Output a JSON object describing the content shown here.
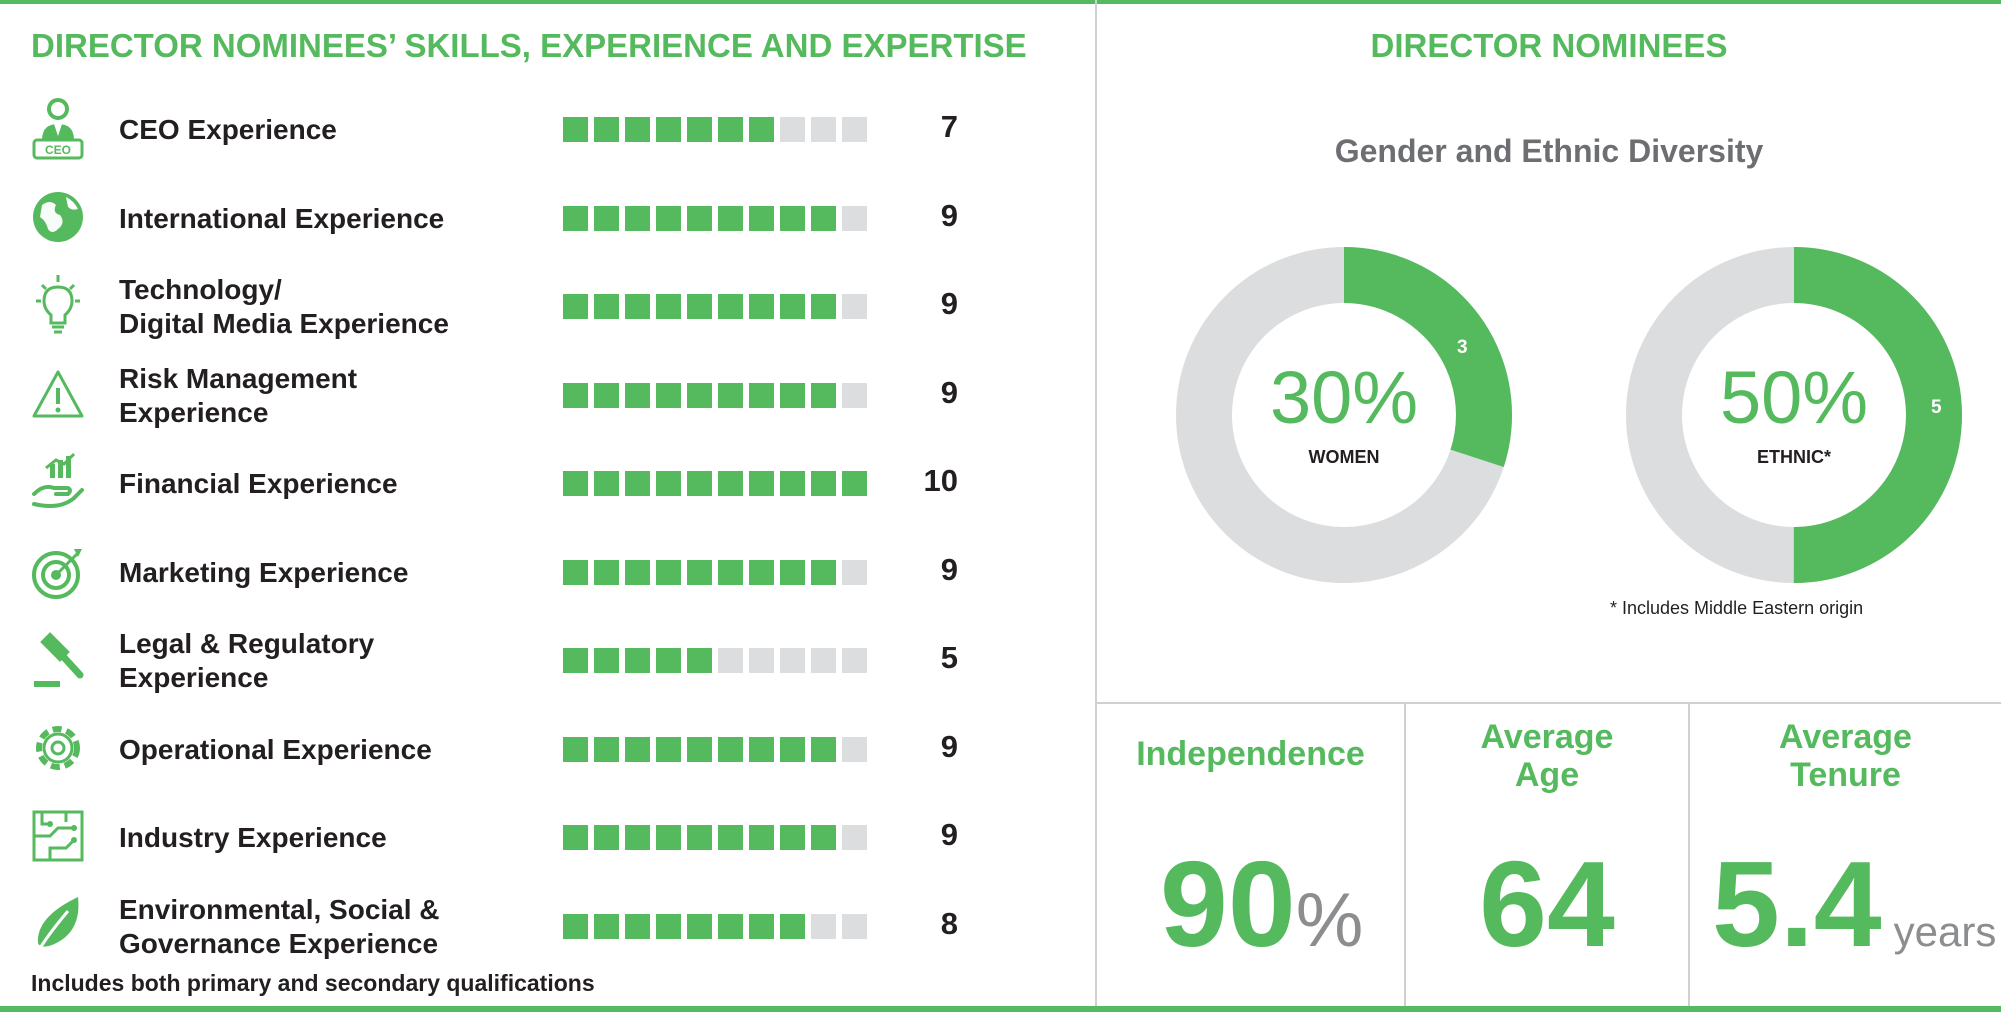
{
  "left_panel": {
    "title": "DIRECTOR NOMINEES’ SKILLS, EXPERIENCE AND EXPERTISE",
    "footnote": "Includes both primary and secondary qualifications"
  },
  "right_panel": {
    "title": "DIRECTOR NOMINEES",
    "subtitle": "Gender and Ethnic Diversity",
    "donut_women": {
      "percent": "30%",
      "caption": "WOMEN",
      "segment_label": "3"
    },
    "donut_ethnic": {
      "percent": "50%",
      "caption": "ETHNIC*",
      "segment_label": "5"
    },
    "ethnic_note": "* Includes Middle Eastern origin",
    "stats": {
      "independence": {
        "title": "Independence",
        "value": "90",
        "unit": "%"
      },
      "age": {
        "title_line1": "Average",
        "title_line2": "Age",
        "value": "64"
      },
      "tenure": {
        "title_line1": "Average",
        "title_line2": "Tenure",
        "value": "5.4",
        "unit": "years"
      }
    }
  },
  "colors": {
    "accent": "#55b95e",
    "empty": "#dcddde",
    "text": "#231f20",
    "muted": "#6d6e71"
  },
  "chart_data": [
    {
      "type": "bar",
      "max": 10,
      "categories": [
        "CEO Experience",
        "International Experience",
        "Technology/ Digital Media Experience",
        "Risk Management Experience",
        "Financial Experience",
        "Marketing Experience",
        "Legal & Regulatory Experience",
        "Operational Experience",
        "Industry Experience",
        "Environmental, Social & Governance Experience"
      ],
      "label_lines": [
        [
          "CEO Experience"
        ],
        [
          "International Experience"
        ],
        [
          "Technology/",
          "Digital Media Experience"
        ],
        [
          "Risk Management",
          "Experience"
        ],
        [
          "Financial Experience"
        ],
        [
          "Marketing Experience"
        ],
        [
          "Legal & Regulatory",
          "Experience"
        ],
        [
          "Operational Experience"
        ],
        [
          "Industry Experience"
        ],
        [
          "Environmental, Social &",
          "Governance Experience"
        ]
      ],
      "icons": [
        "ceo-badge-icon",
        "globe-icon",
        "lightbulb-icon",
        "warning-triangle-icon",
        "hand-chart-icon",
        "target-icon",
        "gavel-icon",
        "gear-icon",
        "circuit-board-icon",
        "leaf-icon"
      ],
      "values": [
        7,
        9,
        9,
        9,
        10,
        9,
        5,
        9,
        9,
        8
      ]
    },
    {
      "type": "pie",
      "title": "",
      "labels": [
        "Women",
        "Other"
      ],
      "values": [
        3,
        7
      ],
      "center_label": "30%"
    },
    {
      "type": "pie",
      "title": "",
      "labels": [
        "Ethnic",
        "Other"
      ],
      "values": [
        5,
        5
      ],
      "center_label": "50%"
    }
  ]
}
